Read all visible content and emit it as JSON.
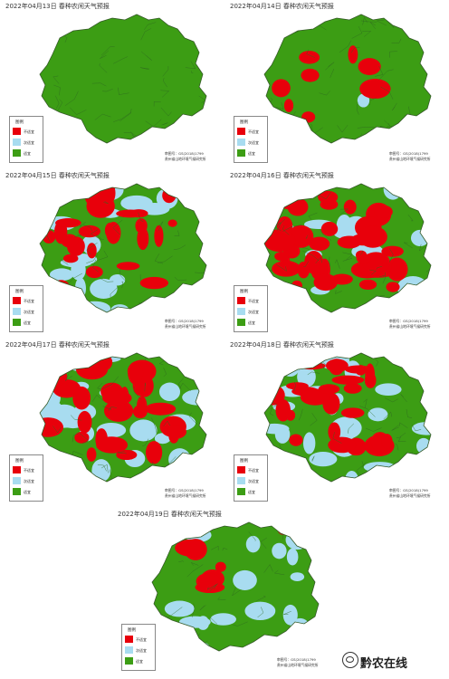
{
  "colors": {
    "unsuitable": "#e8000b",
    "sub_suitable": "#a8dcf0",
    "suitable": "#3c9d14",
    "border": "#2e6b20"
  },
  "legend": {
    "title": "图例",
    "items": [
      {
        "label": "不适宜",
        "color": "#e8000b"
      },
      {
        "label": "次适宜",
        "color": "#a8dcf0"
      },
      {
        "label": "适宜",
        "color": "#3c9d14"
      }
    ]
  },
  "footer": {
    "approval": "审图号：GS(2018)1799",
    "agency": "贵州省山地环境气候研究所"
  },
  "panels": [
    {
      "title": "2022年04月13日 春种农闲天气预报",
      "red": 0.0,
      "blue": 0.0
    },
    {
      "title": "2022年04月14日 春种农闲天气预报",
      "red": 0.12,
      "blue": 0.04
    },
    {
      "title": "2022年04月15日 春种农闲天气预报",
      "red": 0.35,
      "blue": 0.3
    },
    {
      "title": "2022年04月16日 春种农闲天气预报",
      "red": 0.55,
      "blue": 0.25
    },
    {
      "title": "2022年04月17日 春种农闲天气预报",
      "red": 0.45,
      "blue": 0.4
    },
    {
      "title": "2022年04月18日 春种农闲天气预报",
      "red": 0.35,
      "blue": 0.4
    },
    {
      "title": "2022年04月19日 春种农闲天气预报",
      "red": 0.1,
      "blue": 0.3
    }
  ],
  "watermark": {
    "text": "黔农在线",
    "icon": "wechat-logo-icon"
  }
}
